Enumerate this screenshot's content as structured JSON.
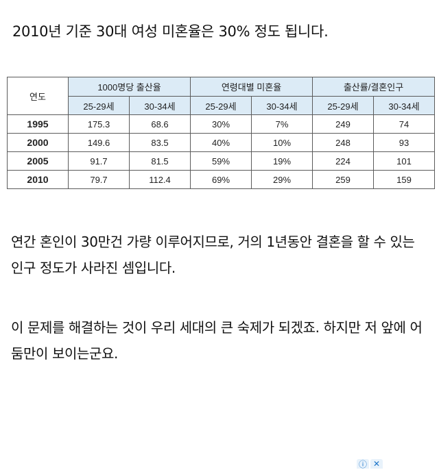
{
  "headline": "2010년 기준 30대 여성 미혼율은 30% 정도 됩니다.",
  "table": {
    "year_header": "연도",
    "groups": [
      "1000명당 출산율",
      "연령대별 미혼율",
      "출산률/결혼인구"
    ],
    "subheaders": [
      "25-29세",
      "30-34세",
      "25-29세",
      "30-34세",
      "25-29세",
      "30-34세"
    ],
    "rows": [
      {
        "year": "1995",
        "cells": [
          "175.3",
          "68.6",
          "30%",
          "7%",
          "249",
          "74"
        ]
      },
      {
        "year": "2000",
        "cells": [
          "149.6",
          "83.5",
          "40%",
          "10%",
          "248",
          "93"
        ]
      },
      {
        "year": "2005",
        "cells": [
          "91.7",
          "81.5",
          "59%",
          "19%",
          "224",
          "101"
        ]
      },
      {
        "year": "2010",
        "cells": [
          "79.7",
          "112.4",
          "69%",
          "29%",
          "259",
          "159"
        ]
      }
    ]
  },
  "paragraphs": [
    "연간 혼인이 30만건 가량 이루어지므로, 거의 1년동안 결혼을 할 수 있는 인구 정도가 사라진 셈입니다.",
    "이 문제를 해결하는 것이 우리 세대의 큰 숙제가 되겠죠. 하지만 저 앞에 어둠만이 보이는군요."
  ],
  "ad": {
    "info_icon": "info-icon",
    "close_icon": "close-icon"
  }
}
